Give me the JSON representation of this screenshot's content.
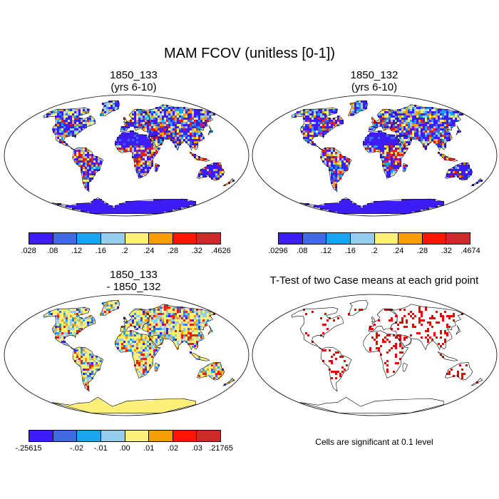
{
  "title": "MAM FCOV (unitless [0-1])",
  "colors": {
    "palette": [
      "#3d1cf5",
      "#4169e1",
      "#19a4f0",
      "#97cdec",
      "#fcf078",
      "#f79d0a",
      "#fc1505",
      "#cb2a2a"
    ],
    "significance": "#ee0000",
    "coast": "#000000"
  },
  "panels": {
    "top_left": {
      "line1": "1850_133",
      "line2": "(yrs 6-10)"
    },
    "top_right": {
      "line1": "1850_132",
      "line2": "(yrs 6-10)"
    },
    "bottom_left": {
      "line1": "1850_133",
      "line2": "- 1850_132"
    },
    "bottom_right": {
      "line1": "T-Test of two Case means at each grid point"
    }
  },
  "significance_note": "Cells are significant at 0.1 level",
  "chart_data": [
    {
      "type": "heatmap",
      "name": "1850_133 (yrs 6-10)",
      "projection": "Robinson world map",
      "colorbar_labels": [
        ".028",
        ".08",
        ".12",
        ".16",
        ".2",
        ".24",
        ".28",
        ".32",
        ".4626"
      ],
      "range": [
        0.028,
        0.4626
      ]
    },
    {
      "type": "heatmap",
      "name": "1850_132 (yrs 6-10)",
      "projection": "Robinson world map",
      "colorbar_labels": [
        ".0296",
        ".08",
        ".12",
        ".16",
        ".2",
        ".24",
        ".28",
        ".32",
        ".4674"
      ],
      "range": [
        0.0296,
        0.4674
      ]
    },
    {
      "type": "heatmap",
      "name": "1850_133 - 1850_132",
      "projection": "Robinson world map",
      "colorbar_labels": [
        "-.25615",
        "-.02",
        "-.01",
        ".00",
        ".01",
        ".02",
        ".03",
        ".21765"
      ],
      "range": [
        -0.25615,
        0.21765
      ]
    },
    {
      "type": "heatmap",
      "name": "T-Test of two Case means at each grid point",
      "projection": "Robinson world map",
      "note": "Cells are significant at 0.1 level"
    }
  ]
}
